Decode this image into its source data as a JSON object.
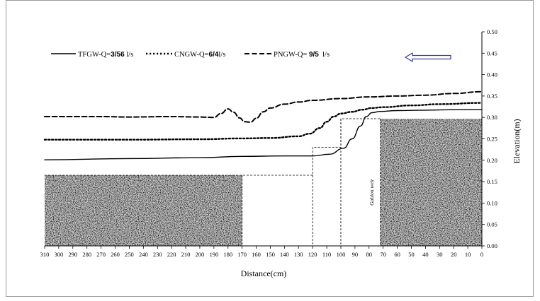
{
  "chart_data": {
    "type": "line",
    "title": "",
    "xlabel": "Distance(cm)",
    "ylabel": "Elevation(m)",
    "xlim": [
      310,
      0
    ],
    "ylim": [
      0.0,
      0.5
    ],
    "x_ticks": [
      310,
      300,
      290,
      280,
      270,
      260,
      250,
      240,
      230,
      220,
      210,
      200,
      190,
      180,
      170,
      160,
      150,
      140,
      130,
      120,
      110,
      100,
      90,
      80,
      70,
      60,
      50,
      40,
      30,
      20,
      10,
      0
    ],
    "y_ticks": [
      "0.00",
      "0.05",
      "0.10",
      "0.15",
      "0.20",
      "0.25",
      "0.30",
      "0.35",
      "0.40",
      "0.45",
      "0.50"
    ],
    "grid": false,
    "legend_position": "top-left",
    "series": [
      {
        "name": "TFGW-Q=3/56 l/s",
        "legend_prefix": "TFGW-Q=",
        "legend_value": "3/56",
        "legend_unit": " l/s",
        "style": "solid",
        "x": [
          310,
          250,
          200,
          170,
          140,
          120,
          108,
          98,
          92,
          86,
          82,
          78,
          72,
          60,
          40,
          20,
          0
        ],
        "y": [
          0.201,
          0.204,
          0.206,
          0.209,
          0.21,
          0.21,
          0.214,
          0.228,
          0.25,
          0.28,
          0.302,
          0.311,
          0.314,
          0.316,
          0.317,
          0.318,
          0.318
        ]
      },
      {
        "name": "CNGW-Q=6/4 l/s",
        "legend_prefix": "CNGW-Q=",
        "legend_value": "6/4",
        "legend_unit": "l/s",
        "style": "dotted",
        "x": [
          310,
          250,
          200,
          170,
          150,
          130,
          122,
          115,
          110,
          105,
          100,
          92,
          85,
          78,
          70,
          50,
          30,
          0
        ],
        "y": [
          0.248,
          0.248,
          0.249,
          0.251,
          0.252,
          0.256,
          0.262,
          0.275,
          0.29,
          0.302,
          0.309,
          0.313,
          0.318,
          0.322,
          0.324,
          0.328,
          0.331,
          0.334
        ]
      },
      {
        "name": "PNGW-Q= 9/5 l/s",
        "legend_prefix": "PNGW-Q= ",
        "legend_value": "9/5",
        "legend_unit": "  l/s",
        "style": "dashed",
        "x": [
          310,
          290,
          270,
          250,
          220,
          200,
          190,
          185,
          180,
          176,
          172,
          168,
          164,
          160,
          155,
          150,
          140,
          130,
          120,
          100,
          80,
          60,
          40,
          20,
          0
        ],
        "y": [
          0.302,
          0.302,
          0.302,
          0.301,
          0.302,
          0.301,
          0.3,
          0.309,
          0.32,
          0.312,
          0.299,
          0.29,
          0.289,
          0.298,
          0.313,
          0.322,
          0.331,
          0.336,
          0.34,
          0.344,
          0.348,
          0.35,
          0.352,
          0.356,
          0.36
        ]
      }
    ],
    "structure_outline": {
      "style": "thin-dashed",
      "x": [
        310,
        170,
        170,
        120,
        120,
        100,
        100,
        80,
        80,
        72
      ],
      "y": [
        0.165,
        0.165,
        0.165,
        0.165,
        0.23,
        0.23,
        0.297,
        0.297,
        0.297,
        0.297
      ]
    },
    "left_bed": {
      "x_from": 310,
      "x_to": 170,
      "top": 0.165
    },
    "right_bed": {
      "x_from": 72,
      "x_to": 0,
      "top": 0.297
    },
    "gabion_weir": {
      "label": "Gabion weir",
      "x_from": 100,
      "x_to": 72,
      "top": 0.297
    },
    "flow_arrow": {
      "direction": "left",
      "color": "#3a3f9a"
    }
  }
}
